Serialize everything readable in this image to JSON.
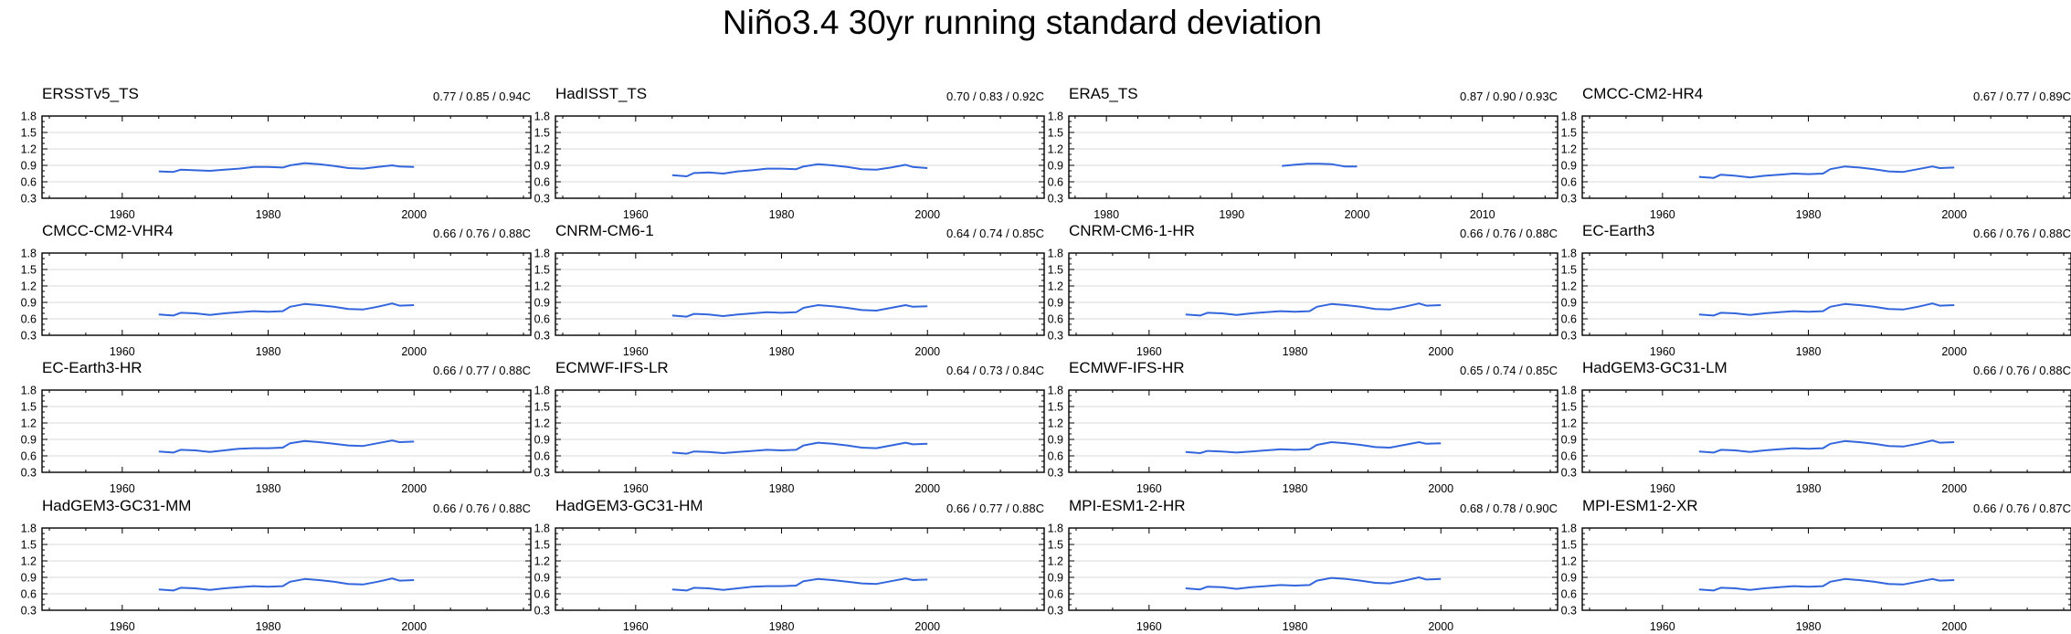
{
  "figure": {
    "title": "Niño3.4 30yr running standard deviation",
    "line_color": "#3366dd",
    "grid_color": "#d9d9d9"
  },
  "chart_data": [
    {
      "type": "line",
      "title": "ERSSTv5_TS",
      "stat": "0.77 / 0.85 / 0.94C",
      "xlim": [
        1949,
        2016
      ],
      "ylim": [
        0.3,
        1.8
      ],
      "xticks": [
        1960,
        1980,
        2000
      ],
      "yticks": [
        0.3,
        0.6,
        0.9,
        1.2,
        1.5,
        1.8
      ],
      "x": [
        1965,
        1967,
        1968,
        1970,
        1972,
        1974,
        1976,
        1978,
        1980,
        1982,
        1983,
        1985,
        1987,
        1989,
        1991,
        1993,
        1995,
        1997,
        1998,
        2000
      ],
      "y": [
        0.79,
        0.78,
        0.82,
        0.81,
        0.8,
        0.82,
        0.84,
        0.87,
        0.87,
        0.86,
        0.9,
        0.94,
        0.92,
        0.89,
        0.85,
        0.84,
        0.87,
        0.9,
        0.88,
        0.87
      ]
    },
    {
      "type": "line",
      "title": "HadISST_TS",
      "stat": "0.70 / 0.83 / 0.92C",
      "xlim": [
        1949,
        2016
      ],
      "ylim": [
        0.3,
        1.8
      ],
      "xticks": [
        1960,
        1980,
        2000
      ],
      "yticks": [
        0.3,
        0.6,
        0.9,
        1.2,
        1.5,
        1.8
      ],
      "x": [
        1965,
        1967,
        1968,
        1970,
        1972,
        1974,
        1976,
        1978,
        1980,
        1982,
        1983,
        1985,
        1987,
        1989,
        1991,
        1993,
        1995,
        1997,
        1998,
        2000
      ],
      "y": [
        0.72,
        0.7,
        0.76,
        0.77,
        0.75,
        0.79,
        0.81,
        0.84,
        0.84,
        0.83,
        0.88,
        0.92,
        0.9,
        0.87,
        0.83,
        0.82,
        0.86,
        0.91,
        0.87,
        0.85
      ]
    },
    {
      "type": "line",
      "title": "ERA5_TS",
      "stat": "0.87 / 0.90 / 0.93C",
      "xlim": [
        1977,
        2016
      ],
      "ylim": [
        0.3,
        1.8
      ],
      "xticks": [
        1980,
        1990,
        2000,
        2010
      ],
      "yticks": [
        0.3,
        0.6,
        0.9,
        1.2,
        1.5,
        1.8
      ],
      "x": [
        1994,
        1995,
        1996,
        1997,
        1998,
        1999,
        2000
      ],
      "y": [
        0.89,
        0.91,
        0.93,
        0.93,
        0.92,
        0.88,
        0.88
      ]
    },
    {
      "type": "line",
      "title": "CMCC-CM2-HR4",
      "stat": "0.67 / 0.77 / 0.89C",
      "xlim": [
        1949,
        2016
      ],
      "ylim": [
        0.3,
        1.8
      ],
      "xticks": [
        1960,
        1980,
        2000
      ],
      "yticks": [
        0.3,
        0.6,
        0.9,
        1.2,
        1.5,
        1.8
      ],
      "x": [
        1965,
        1967,
        1968,
        1970,
        1972,
        1974,
        1976,
        1978,
        1980,
        1982,
        1983,
        1985,
        1987,
        1989,
        1991,
        1993,
        1995,
        1997,
        1998,
        2000
      ],
      "y": [
        0.69,
        0.67,
        0.73,
        0.71,
        0.68,
        0.71,
        0.73,
        0.75,
        0.74,
        0.75,
        0.83,
        0.88,
        0.86,
        0.83,
        0.79,
        0.78,
        0.83,
        0.88,
        0.85,
        0.86
      ]
    },
    {
      "type": "line",
      "title": "CMCC-CM2-VHR4",
      "stat": "0.66 / 0.76 / 0.88C",
      "xlim": [
        1949,
        2016
      ],
      "ylim": [
        0.3,
        1.8
      ],
      "xticks": [
        1960,
        1980,
        2000
      ],
      "yticks": [
        0.3,
        0.6,
        0.9,
        1.2,
        1.5,
        1.8
      ],
      "x": [
        1965,
        1967,
        1968,
        1970,
        1972,
        1974,
        1976,
        1978,
        1980,
        1982,
        1983,
        1985,
        1987,
        1989,
        1991,
        1993,
        1995,
        1997,
        1998,
        2000
      ],
      "y": [
        0.68,
        0.66,
        0.71,
        0.7,
        0.67,
        0.7,
        0.72,
        0.74,
        0.73,
        0.74,
        0.82,
        0.87,
        0.85,
        0.82,
        0.78,
        0.77,
        0.82,
        0.88,
        0.84,
        0.85
      ]
    },
    {
      "type": "line",
      "title": "CNRM-CM6-1",
      "stat": "0.64 / 0.74 / 0.85C",
      "xlim": [
        1949,
        2016
      ],
      "ylim": [
        0.3,
        1.8
      ],
      "xticks": [
        1960,
        1980,
        2000
      ],
      "yticks": [
        0.3,
        0.6,
        0.9,
        1.2,
        1.5,
        1.8
      ],
      "x": [
        1965,
        1967,
        1968,
        1970,
        1972,
        1974,
        1976,
        1978,
        1980,
        1982,
        1983,
        1985,
        1987,
        1989,
        1991,
        1993,
        1995,
        1997,
        1998,
        2000
      ],
      "y": [
        0.66,
        0.64,
        0.69,
        0.68,
        0.65,
        0.68,
        0.7,
        0.72,
        0.71,
        0.72,
        0.8,
        0.85,
        0.83,
        0.8,
        0.76,
        0.75,
        0.8,
        0.85,
        0.82,
        0.83
      ]
    },
    {
      "type": "line",
      "title": "CNRM-CM6-1-HR",
      "stat": "0.66 / 0.76 / 0.88C",
      "xlim": [
        1949,
        2016
      ],
      "ylim": [
        0.3,
        1.8
      ],
      "xticks": [
        1960,
        1980,
        2000
      ],
      "yticks": [
        0.3,
        0.6,
        0.9,
        1.2,
        1.5,
        1.8
      ],
      "x": [
        1965,
        1967,
        1968,
        1970,
        1972,
        1974,
        1976,
        1978,
        1980,
        1982,
        1983,
        1985,
        1987,
        1989,
        1991,
        1993,
        1995,
        1997,
        1998,
        2000
      ],
      "y": [
        0.68,
        0.66,
        0.71,
        0.7,
        0.67,
        0.7,
        0.72,
        0.74,
        0.73,
        0.74,
        0.82,
        0.87,
        0.85,
        0.82,
        0.78,
        0.77,
        0.82,
        0.88,
        0.84,
        0.85
      ]
    },
    {
      "type": "line",
      "title": "EC-Earth3",
      "stat": "0.66 / 0.76 / 0.88C",
      "xlim": [
        1949,
        2016
      ],
      "ylim": [
        0.3,
        1.8
      ],
      "xticks": [
        1960,
        1980,
        2000
      ],
      "yticks": [
        0.3,
        0.6,
        0.9,
        1.2,
        1.5,
        1.8
      ],
      "x": [
        1965,
        1967,
        1968,
        1970,
        1972,
        1974,
        1976,
        1978,
        1980,
        1982,
        1983,
        1985,
        1987,
        1989,
        1991,
        1993,
        1995,
        1997,
        1998,
        2000
      ],
      "y": [
        0.68,
        0.66,
        0.71,
        0.7,
        0.67,
        0.7,
        0.72,
        0.74,
        0.73,
        0.74,
        0.82,
        0.87,
        0.85,
        0.82,
        0.78,
        0.77,
        0.82,
        0.88,
        0.84,
        0.85
      ]
    },
    {
      "type": "line",
      "title": "EC-Earth3-HR",
      "stat": "0.66 / 0.77 / 0.88C",
      "xlim": [
        1949,
        2016
      ],
      "ylim": [
        0.3,
        1.8
      ],
      "xticks": [
        1960,
        1980,
        2000
      ],
      "yticks": [
        0.3,
        0.6,
        0.9,
        1.2,
        1.5,
        1.8
      ],
      "x": [
        1965,
        1967,
        1968,
        1970,
        1972,
        1974,
        1976,
        1978,
        1980,
        1982,
        1983,
        1985,
        1987,
        1989,
        1991,
        1993,
        1995,
        1997,
        1998,
        2000
      ],
      "y": [
        0.68,
        0.66,
        0.71,
        0.7,
        0.67,
        0.7,
        0.73,
        0.74,
        0.74,
        0.75,
        0.83,
        0.87,
        0.85,
        0.82,
        0.79,
        0.78,
        0.83,
        0.88,
        0.85,
        0.86
      ]
    },
    {
      "type": "line",
      "title": "ECMWF-IFS-LR",
      "stat": "0.64 / 0.73 / 0.84C",
      "xlim": [
        1949,
        2016
      ],
      "ylim": [
        0.3,
        1.8
      ],
      "xticks": [
        1960,
        1980,
        2000
      ],
      "yticks": [
        0.3,
        0.6,
        0.9,
        1.2,
        1.5,
        1.8
      ],
      "x": [
        1965,
        1967,
        1968,
        1970,
        1972,
        1974,
        1976,
        1978,
        1980,
        1982,
        1983,
        1985,
        1987,
        1989,
        1991,
        1993,
        1995,
        1997,
        1998,
        2000
      ],
      "y": [
        0.66,
        0.64,
        0.68,
        0.67,
        0.65,
        0.67,
        0.69,
        0.71,
        0.7,
        0.71,
        0.79,
        0.84,
        0.82,
        0.79,
        0.75,
        0.74,
        0.79,
        0.84,
        0.81,
        0.82
      ]
    },
    {
      "type": "line",
      "title": "ECMWF-IFS-HR",
      "stat": "0.65 / 0.74 / 0.85C",
      "xlim": [
        1949,
        2016
      ],
      "ylim": [
        0.3,
        1.8
      ],
      "xticks": [
        1960,
        1980,
        2000
      ],
      "yticks": [
        0.3,
        0.6,
        0.9,
        1.2,
        1.5,
        1.8
      ],
      "x": [
        1965,
        1967,
        1968,
        1970,
        1972,
        1974,
        1976,
        1978,
        1980,
        1982,
        1983,
        1985,
        1987,
        1989,
        1991,
        1993,
        1995,
        1997,
        1998,
        2000
      ],
      "y": [
        0.67,
        0.65,
        0.69,
        0.68,
        0.66,
        0.68,
        0.7,
        0.72,
        0.71,
        0.72,
        0.8,
        0.85,
        0.83,
        0.8,
        0.76,
        0.75,
        0.8,
        0.85,
        0.82,
        0.83
      ]
    },
    {
      "type": "line",
      "title": "HadGEM3-GC31-LM",
      "stat": "0.66 / 0.76 / 0.88C",
      "xlim": [
        1949,
        2016
      ],
      "ylim": [
        0.3,
        1.8
      ],
      "xticks": [
        1960,
        1980,
        2000
      ],
      "yticks": [
        0.3,
        0.6,
        0.9,
        1.2,
        1.5,
        1.8
      ],
      "x": [
        1965,
        1967,
        1968,
        1970,
        1972,
        1974,
        1976,
        1978,
        1980,
        1982,
        1983,
        1985,
        1987,
        1989,
        1991,
        1993,
        1995,
        1997,
        1998,
        2000
      ],
      "y": [
        0.68,
        0.66,
        0.71,
        0.7,
        0.67,
        0.7,
        0.72,
        0.74,
        0.73,
        0.74,
        0.82,
        0.87,
        0.85,
        0.82,
        0.78,
        0.77,
        0.82,
        0.88,
        0.84,
        0.85
      ]
    },
    {
      "type": "line",
      "title": "HadGEM3-GC31-MM",
      "stat": "0.66 / 0.76 / 0.88C",
      "xlim": [
        1949,
        2016
      ],
      "ylim": [
        0.3,
        1.8
      ],
      "xticks": [
        1960,
        1980,
        2000
      ],
      "yticks": [
        0.3,
        0.6,
        0.9,
        1.2,
        1.5,
        1.8
      ],
      "x": [
        1965,
        1967,
        1968,
        1970,
        1972,
        1974,
        1976,
        1978,
        1980,
        1982,
        1983,
        1985,
        1987,
        1989,
        1991,
        1993,
        1995,
        1997,
        1998,
        2000
      ],
      "y": [
        0.68,
        0.66,
        0.71,
        0.7,
        0.67,
        0.7,
        0.72,
        0.74,
        0.73,
        0.74,
        0.82,
        0.87,
        0.85,
        0.82,
        0.78,
        0.77,
        0.82,
        0.88,
        0.84,
        0.85
      ]
    },
    {
      "type": "line",
      "title": "HadGEM3-GC31-HM",
      "stat": "0.66 / 0.77 / 0.88C",
      "xlim": [
        1949,
        2016
      ],
      "ylim": [
        0.3,
        1.8
      ],
      "xticks": [
        1960,
        1980,
        2000
      ],
      "yticks": [
        0.3,
        0.6,
        0.9,
        1.2,
        1.5,
        1.8
      ],
      "x": [
        1965,
        1967,
        1968,
        1970,
        1972,
        1974,
        1976,
        1978,
        1980,
        1982,
        1983,
        1985,
        1987,
        1989,
        1991,
        1993,
        1995,
        1997,
        1998,
        2000
      ],
      "y": [
        0.68,
        0.66,
        0.71,
        0.7,
        0.67,
        0.7,
        0.73,
        0.74,
        0.74,
        0.75,
        0.83,
        0.87,
        0.85,
        0.82,
        0.79,
        0.78,
        0.83,
        0.88,
        0.85,
        0.86
      ]
    },
    {
      "type": "line",
      "title": "MPI-ESM1-2-HR",
      "stat": "0.68 / 0.78 / 0.90C",
      "xlim": [
        1949,
        2016
      ],
      "ylim": [
        0.3,
        1.8
      ],
      "xticks": [
        1960,
        1980,
        2000
      ],
      "yticks": [
        0.3,
        0.6,
        0.9,
        1.2,
        1.5,
        1.8
      ],
      "x": [
        1965,
        1967,
        1968,
        1970,
        1972,
        1974,
        1976,
        1978,
        1980,
        1982,
        1983,
        1985,
        1987,
        1989,
        1991,
        1993,
        1995,
        1997,
        1998,
        2000
      ],
      "y": [
        0.7,
        0.68,
        0.73,
        0.72,
        0.69,
        0.72,
        0.74,
        0.76,
        0.75,
        0.76,
        0.84,
        0.89,
        0.87,
        0.84,
        0.8,
        0.79,
        0.84,
        0.9,
        0.86,
        0.87
      ]
    },
    {
      "type": "line",
      "title": "MPI-ESM1-2-XR",
      "stat": "0.66 / 0.76 / 0.87C",
      "xlim": [
        1949,
        2016
      ],
      "ylim": [
        0.3,
        1.8
      ],
      "xticks": [
        1960,
        1980,
        2000
      ],
      "yticks": [
        0.3,
        0.6,
        0.9,
        1.2,
        1.5,
        1.8
      ],
      "x": [
        1965,
        1967,
        1968,
        1970,
        1972,
        1974,
        1976,
        1978,
        1980,
        1982,
        1983,
        1985,
        1987,
        1989,
        1991,
        1993,
        1995,
        1997,
        1998,
        2000
      ],
      "y": [
        0.68,
        0.66,
        0.71,
        0.7,
        0.67,
        0.7,
        0.72,
        0.74,
        0.73,
        0.74,
        0.82,
        0.87,
        0.85,
        0.82,
        0.78,
        0.77,
        0.82,
        0.87,
        0.84,
        0.85
      ]
    }
  ]
}
